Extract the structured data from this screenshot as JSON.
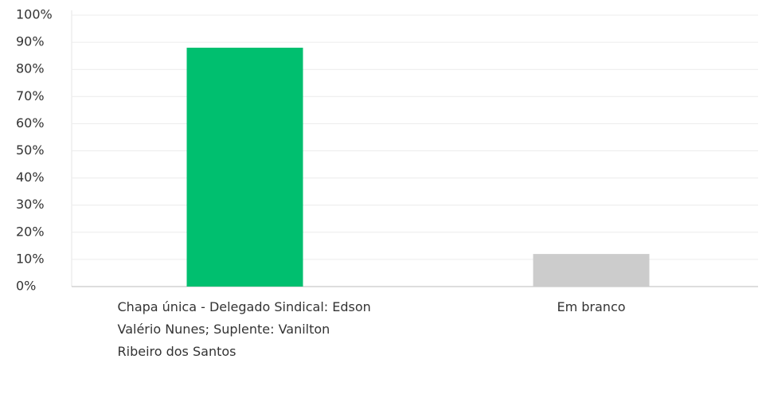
{
  "chart_data": {
    "type": "bar",
    "categories": [
      "Chapa única - Delegado Sindical: Edson Valério Nunes; Suplente: Vanilton Ribeiro dos Santos",
      "Em branco"
    ],
    "values": [
      88,
      12
    ],
    "colors": [
      "#00bf6f",
      "#cccccc"
    ],
    "ylim": [
      0,
      100
    ],
    "yticks": [
      {
        "value": 0,
        "label": "0%"
      },
      {
        "value": 10,
        "label": "10%"
      },
      {
        "value": 20,
        "label": "20%"
      },
      {
        "value": 30,
        "label": "30%"
      },
      {
        "value": 40,
        "label": "40%"
      },
      {
        "value": 50,
        "label": "50%"
      },
      {
        "value": 60,
        "label": "60%"
      },
      {
        "value": 70,
        "label": "70%"
      },
      {
        "value": 80,
        "label": "80%"
      },
      {
        "value": 90,
        "label": "90%"
      },
      {
        "value": 100,
        "label": "100%"
      }
    ],
    "grid": true
  }
}
